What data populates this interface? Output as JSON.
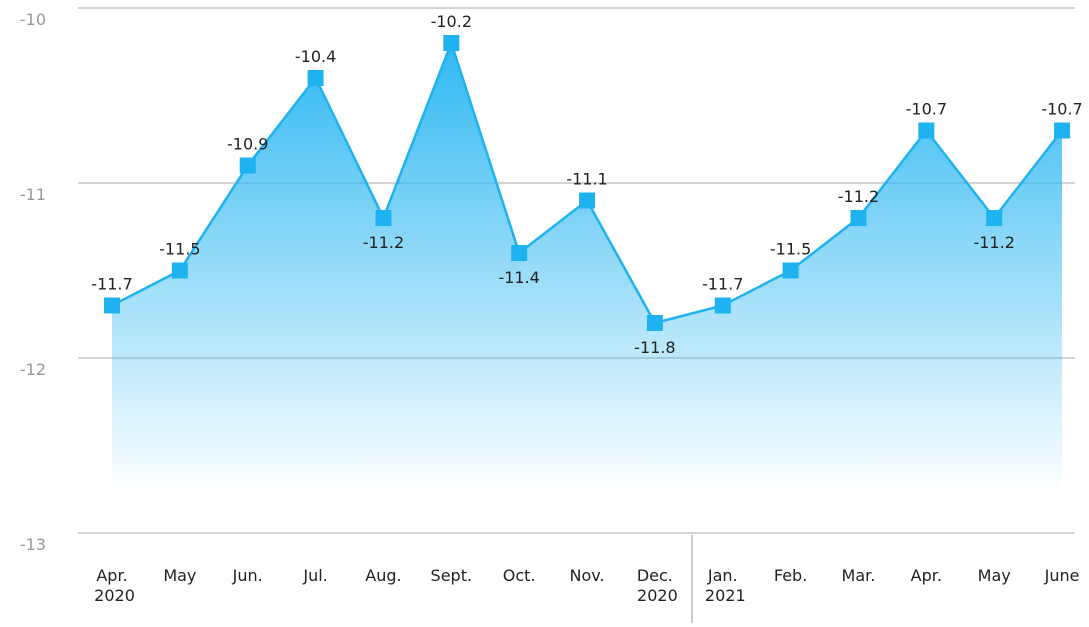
{
  "chart_data": {
    "type": "area",
    "categories": [
      "Apr. 2020",
      "May",
      "Jun.",
      "Jul.",
      "Aug.",
      "Sept.",
      "Oct.",
      "Nov.",
      "Dec. 2020",
      "Jan. 2021",
      "Feb.",
      "Mar.",
      "Apr.",
      "May",
      "June"
    ],
    "values": [
      -11.7,
      -11.5,
      -10.9,
      -10.4,
      -11.2,
      -10.2,
      -11.4,
      -11.1,
      -11.8,
      -11.7,
      -11.5,
      -11.2,
      -10.7,
      -11.2,
      -10.7
    ],
    "color": "#1fb2f0",
    "ylim": [
      -13,
      -10
    ],
    "yticks": [
      -13,
      -12,
      -11,
      -10
    ],
    "grid": true
  }
}
